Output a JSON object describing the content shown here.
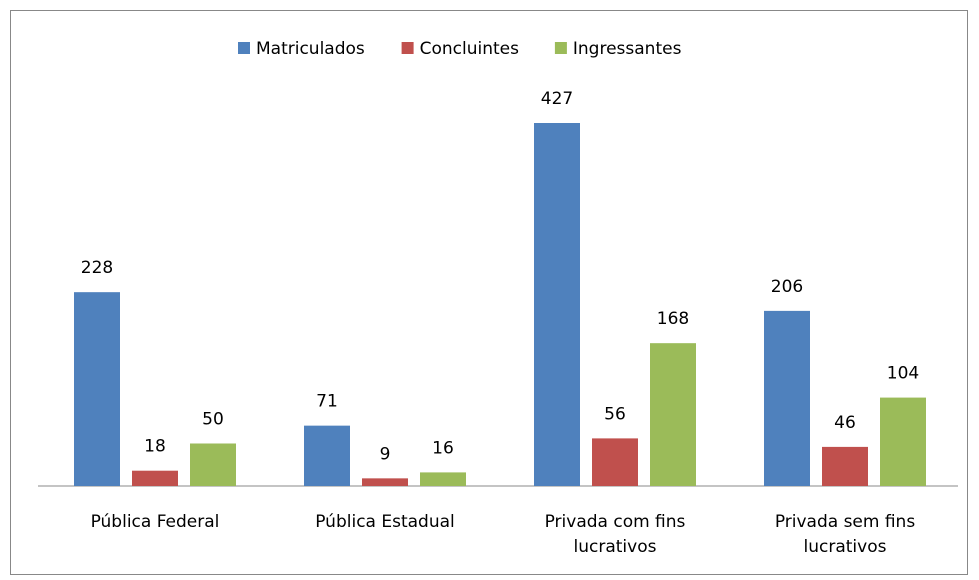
{
  "chart_data": {
    "type": "bar",
    "categories": [
      "Pública Federal",
      "Pública Estadual",
      "Privada com fins lucrativos",
      "Privada sem fins lucrativos"
    ],
    "series": [
      {
        "name": "Matriculados",
        "color": "#4f81bd",
        "values": [
          228,
          71,
          427,
          206
        ]
      },
      {
        "name": "Concluintes",
        "color": "#c0504d",
        "values": [
          18,
          9,
          56,
          46
        ]
      },
      {
        "name": "Ingressantes",
        "color": "#9bbb59",
        "values": [
          50,
          16,
          168,
          104
        ]
      }
    ],
    "legend": "top"
  }
}
